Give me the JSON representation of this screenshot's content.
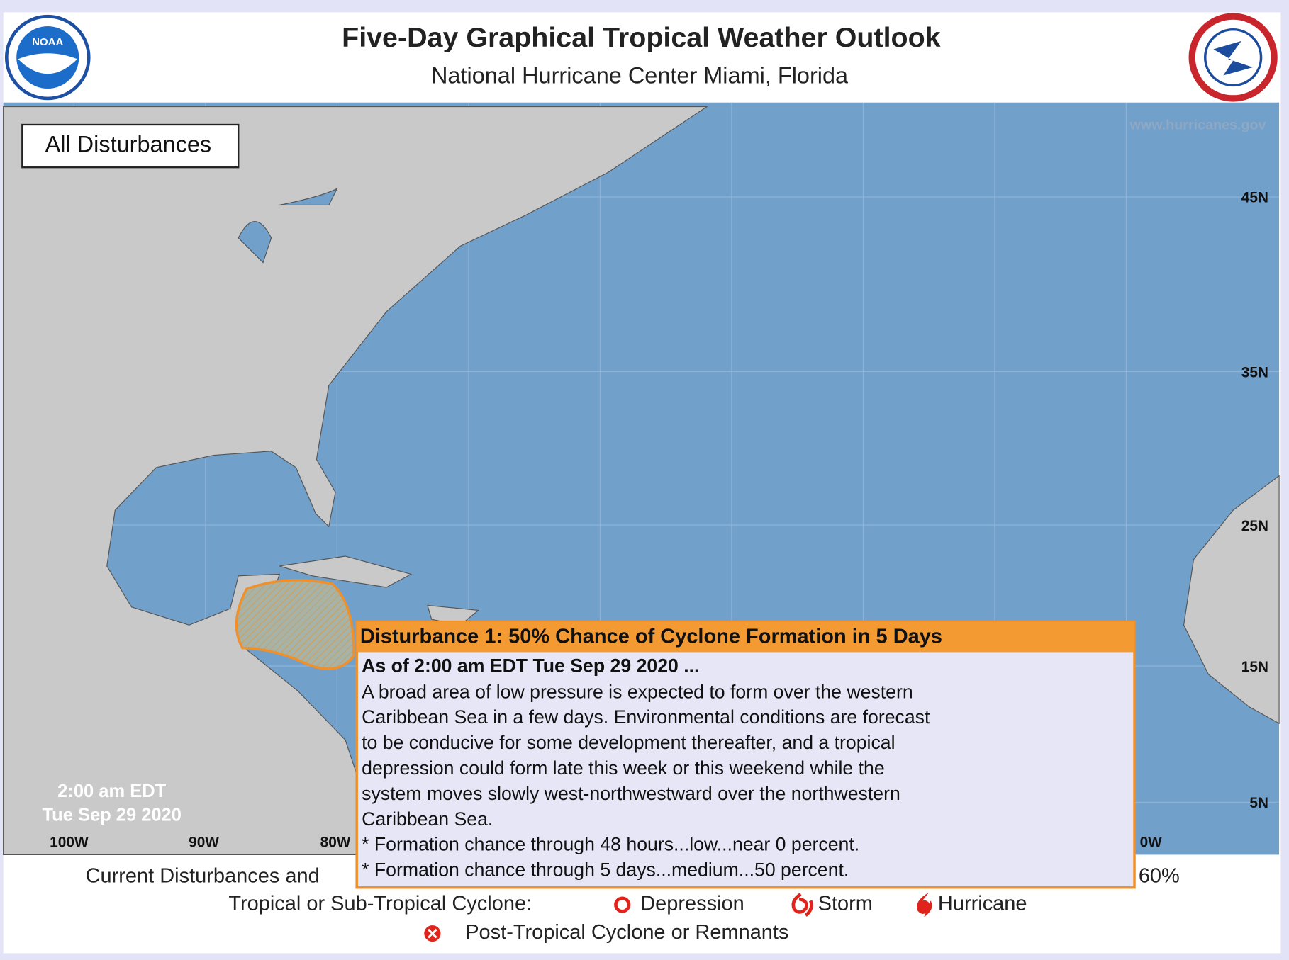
{
  "header": {
    "title": "Five-Day Graphical Tropical Weather Outlook",
    "subtitle": "National Hurricane Center  Miami, Florida",
    "noaa_logo": "NOAA"
  },
  "map": {
    "website": "www.hurricanes.gov",
    "panel_label": "All Disturbances",
    "timestamp": [
      "2:00 am EDT",
      "Tue Sep 29 2020"
    ],
    "lat_labels": [
      "45N",
      "35N",
      "25N",
      "15N",
      "5N"
    ],
    "lon_labels": [
      "100W",
      "90W",
      "80W",
      "0W"
    ]
  },
  "popup": {
    "title": "Disturbance 1: 50% Chance of Cyclone Formation in 5 Days",
    "as_of": "As of 2:00 am EDT Tue Sep 29 2020 ...",
    "body": [
      "A broad area of low pressure is expected to form over the western",
      "Caribbean Sea in a few days. Environmental conditions are forecast",
      "to be conducive for some development thereafter, and a tropical",
      "depression could form late this week or this weekend while the",
      "system moves slowly west-northwestward over the northwestern",
      "Caribbean Sea."
    ],
    "formation": [
      "* Formation chance through 48 hours...low...near 0 percent.",
      "* Formation chance through 5 days...medium...50 percent."
    ]
  },
  "legend": {
    "line1_start": "Current Disturbances and",
    "line1_end": "60%",
    "cyclone_label": "Tropical or Sub-Tropical Cyclone:",
    "cyclone_types": [
      "Depression",
      "Storm",
      "Hurricane"
    ],
    "post_tropical": "Post-Tropical Cyclone or Remnants"
  }
}
